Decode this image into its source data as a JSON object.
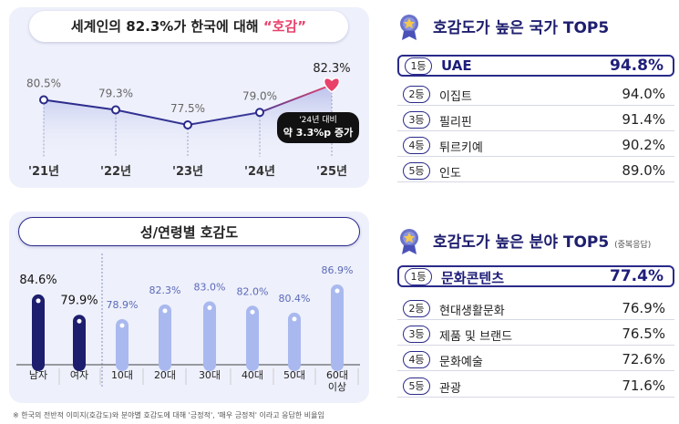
{
  "chart_data": [
    {
      "type": "line",
      "title": "세계인의 82.3%가 한국에 대해",
      "title_highlight": "“호감”",
      "categories": [
        "'21년",
        "'22년",
        "'23년",
        "'24년",
        "'25년"
      ],
      "values": [
        80.5,
        79.3,
        77.5,
        79.0,
        82.3
      ],
      "value_labels": [
        "80.5%",
        "79.3%",
        "77.5%",
        "79.0%",
        "82.3%"
      ],
      "color": "#2a2a8a",
      "highlight_color": "#e8416a",
      "annotation": [
        "'24년 대비",
        "약 3.3%p 증가"
      ]
    },
    {
      "type": "bar",
      "title": "성/연령별 호감도",
      "categories": [
        "남자",
        "여자",
        "10대",
        "20대",
        "30대",
        "40대",
        "50대",
        "60대\n이상"
      ],
      "values": [
        84.6,
        79.9,
        78.9,
        82.3,
        83.0,
        82.0,
        80.4,
        86.9
      ],
      "value_labels": [
        "84.6%",
        "79.9%",
        "78.9%",
        "82.3%",
        "83.0%",
        "82.0%",
        "80.4%",
        "86.9%"
      ],
      "colors": [
        "#1e1e6e",
        "#1e1e6e",
        "#a9b9ef",
        "#a9b9ef",
        "#a9b9ef",
        "#a9b9ef",
        "#a9b9ef",
        "#a9b9ef"
      ]
    }
  ],
  "country_top5": {
    "title": "호감도가 높은 국가 TOP5",
    "items": [
      {
        "rank": "1등",
        "name": "UAE",
        "value": "94.8%"
      },
      {
        "rank": "2등",
        "name": "이집트",
        "value": "94.0%"
      },
      {
        "rank": "3등",
        "name": "필리핀",
        "value": "91.4%"
      },
      {
        "rank": "4등",
        "name": "튀르키예",
        "value": "90.2%"
      },
      {
        "rank": "5등",
        "name": "인도",
        "value": "89.0%"
      }
    ]
  },
  "field_top5": {
    "title": "호감도가 높은 분야 TOP5",
    "note": "(중복응답)",
    "items": [
      {
        "rank": "1등",
        "name": "문화콘텐츠",
        "value": "77.4%"
      },
      {
        "rank": "2등",
        "name": "현대생활문화",
        "value": "76.9%"
      },
      {
        "rank": "3등",
        "name": "제품 및 브랜드",
        "value": "76.5%"
      },
      {
        "rank": "4등",
        "name": "문화예술",
        "value": "72.6%"
      },
      {
        "rank": "5등",
        "name": "관광",
        "value": "71.6%"
      }
    ]
  },
  "footnote": "※ 한국의 전반적 이미지(호감도)와 분야별 호감도에 대해 '긍정적', '매우 긍정적' 이라고 응답한 비율임"
}
